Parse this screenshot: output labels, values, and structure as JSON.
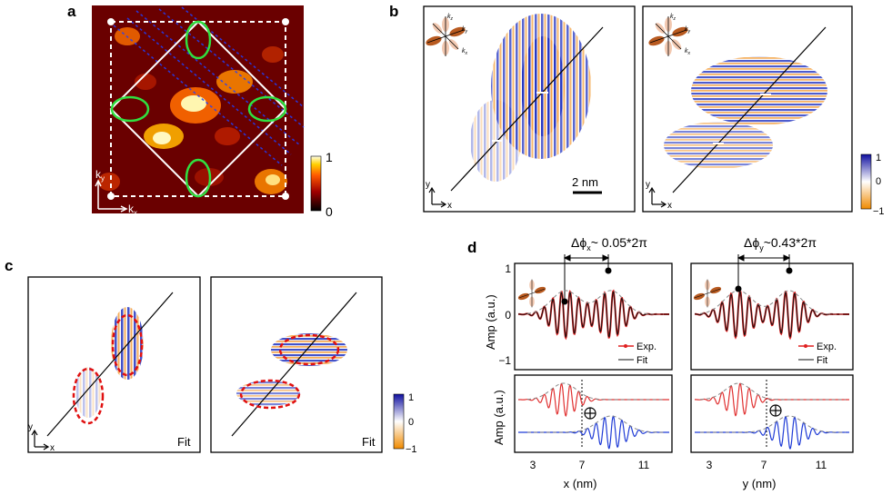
{
  "panels": {
    "a": {
      "label": "a",
      "kx": "k",
      "kx_sub": "x",
      "ky": "k",
      "ky_sub": "y",
      "cbar_max": "1",
      "cbar_min": "0"
    },
    "b": {
      "label": "b",
      "scalebar": "2 nm",
      "axis_x": "x",
      "axis_y": "y",
      "cbar_max": "1",
      "cbar_mid": "0",
      "cbar_min": "−1"
    },
    "c": {
      "label": "c",
      "fit_left": "Fit",
      "fit_right": "Fit",
      "axis_x": "x",
      "axis_y": "y",
      "cbar_max": "1",
      "cbar_mid": "0",
      "cbar_min": "−1"
    },
    "d": {
      "label": "d",
      "phase_x": "Δϕ",
      "phase_x_sub": "x",
      "phase_x_val": "~ 0.05*2π",
      "phase_y": "Δϕ",
      "phase_y_sub": "y",
      "phase_y_val": "~0.43*2π",
      "ylabel_top": "Amp (a.u.)",
      "ylabel_bottom": "Amp (a.u.)",
      "yticks_top": [
        "1",
        "0",
        "−1"
      ],
      "xticks": [
        "3",
        "7",
        "11"
      ],
      "xlabel_left": "x (nm)",
      "xlabel_right": "y (nm)",
      "legend_exp": "Exp.",
      "legend_fit": "Fit",
      "colors": {
        "exp": "#e02020",
        "fit": "#111111",
        "blue": "#1f3bd6",
        "red": "#e03030"
      }
    }
  },
  "inset_k_labels": {
    "kz": "k",
    "kz_sub": "z",
    "ky": "k",
    "ky_sub": "y",
    "kx": "k",
    "kx_sub": "x"
  }
}
